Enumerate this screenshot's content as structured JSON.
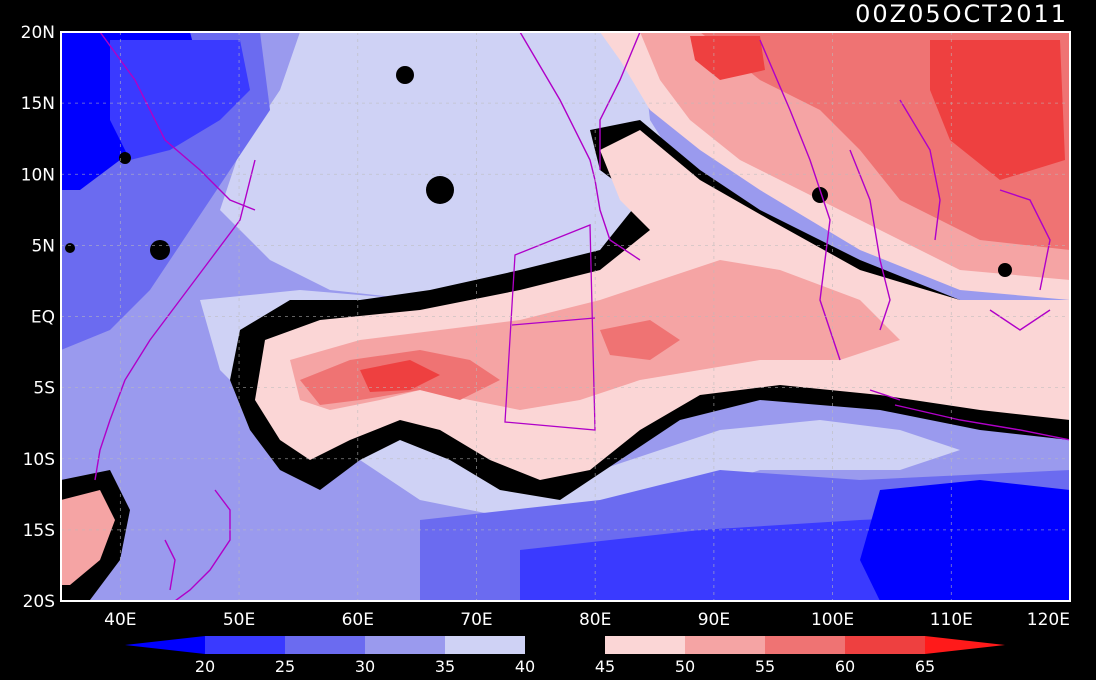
{
  "title": "00Z05OCT2011",
  "axes": {
    "lat_labels": [
      "20N",
      "15N",
      "10N",
      "5N",
      "EQ",
      "5S",
      "10S",
      "15S",
      "20S"
    ],
    "lon_labels": [
      "40E",
      "50E",
      "60E",
      "70E",
      "80E",
      "90E",
      "100E",
      "110E",
      "120E"
    ],
    "lat_range": [
      -20,
      20
    ],
    "lon_range": [
      35,
      120
    ]
  },
  "colorbar": {
    "labels": [
      "20",
      "25",
      "30",
      "35",
      "40",
      "45",
      "50",
      "55",
      "60",
      "65"
    ],
    "colors": [
      "#0000ff",
      "#3a3aff",
      "#6b6bf0",
      "#9a9aee",
      "#cfd2f5",
      "#000000",
      "#fbd6d6",
      "#f5a4a4",
      "#ef7373",
      "#ee4040",
      "#ff1a1a"
    ]
  },
  "colors": {
    "frame": "#ffffff",
    "coastline": "#b000c8",
    "grid": "#bbbbbb"
  }
}
